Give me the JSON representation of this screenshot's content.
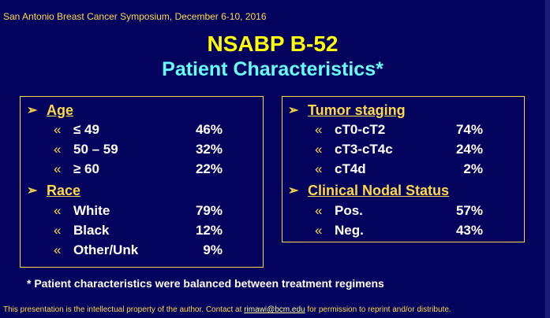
{
  "header": "San Antonio Breast Cancer Symposium, December 6-10, 2016",
  "title": "NSABP B-52",
  "subtitle": "Patient Characteristics*",
  "symbols": {
    "section_arrow": "➢",
    "item_bullet": "«"
  },
  "left_box": {
    "age": {
      "heading": "Age",
      "rows": [
        {
          "label": "≤ 49",
          "value": "46%"
        },
        {
          "label": "50 – 59",
          "value": "32%"
        },
        {
          "label": "≥ 60",
          "value": "22%"
        }
      ]
    },
    "race": {
      "heading": "Race",
      "rows": [
        {
          "label": "White",
          "value": "79%"
        },
        {
          "label": "Black",
          "value": "12%"
        },
        {
          "label": "Other/Unk",
          "value": "9%"
        }
      ]
    }
  },
  "right_box": {
    "tumor": {
      "heading": "Tumor staging",
      "rows": [
        {
          "label": "cT0-cT2",
          "value": "74%"
        },
        {
          "label": "cT3-cT4c",
          "value": "24%"
        },
        {
          "label": "cT4d",
          "value": "2%"
        }
      ]
    },
    "nodal": {
      "heading": "Clinical Nodal Status",
      "rows": [
        {
          "label": "Pos.",
          "value": "57%"
        },
        {
          "label": "Neg.",
          "value": "43%"
        }
      ]
    }
  },
  "footnote": "* Patient characteristics were balanced between treatment regimens",
  "footer": {
    "before": "This presentation is the intellectual property of the author. Contact at ",
    "email": "rimawi@bcm.edu",
    "after": " for permission to reprint and/or distribute."
  }
}
